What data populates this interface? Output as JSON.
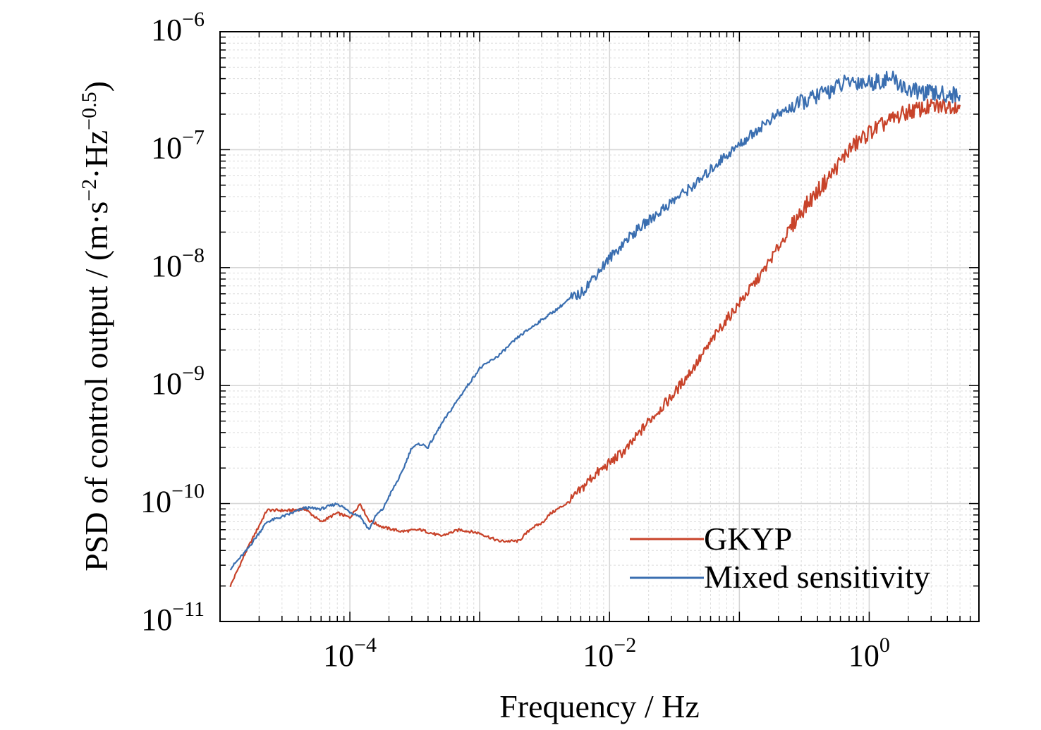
{
  "chart_data": {
    "type": "line",
    "title": "",
    "xlabel": "Frequency / Hz",
    "ylabel_prefix": "PSD of control output / (m·s",
    "ylabel_exp1": "−2",
    "ylabel_mid": "·Hz",
    "ylabel_exp2": "−0.5",
    "ylabel_suffix": ")",
    "xscale": "log",
    "yscale": "log",
    "xlim": [
      1e-05,
      7
    ],
    "ylim": [
      1e-11,
      1e-06
    ],
    "grid": true,
    "legend_position": "bottom-right",
    "x_ticks": [
      {
        "base": "10",
        "exp": "−4",
        "value": 0.0001
      },
      {
        "base": "10",
        "exp": "−2",
        "value": 0.01
      },
      {
        "base": "10",
        "exp": "0",
        "value": 1
      }
    ],
    "y_ticks": [
      {
        "base": "10",
        "exp": "−6",
        "value": 1e-06
      },
      {
        "base": "10",
        "exp": "−7",
        "value": 1e-07
      },
      {
        "base": "10",
        "exp": "−8",
        "value": 1e-08
      },
      {
        "base": "10",
        "exp": "−9",
        "value": 1e-09
      },
      {
        "base": "10",
        "exp": "−10",
        "value": 1e-10
      },
      {
        "base": "10",
        "exp": "−11",
        "value": 1e-11
      }
    ],
    "series": [
      {
        "name": "GKYP",
        "color": "#c8432a",
        "x": [
          1.2e-05,
          1.6e-05,
          2.3e-05,
          3.3e-05,
          4.5e-05,
          6e-05,
          8e-05,
          0.0001,
          0.00012,
          0.00014,
          0.00018,
          0.00025,
          0.00035,
          0.0005,
          0.0007,
          0.001,
          0.0014,
          0.002,
          0.0025,
          0.003,
          0.0035,
          0.004,
          0.005,
          0.006,
          0.007,
          0.01,
          0.014,
          0.02,
          0.03,
          0.05,
          0.07,
          0.1,
          0.15,
          0.2,
          0.3,
          0.5,
          0.7,
          1.0,
          1.5,
          2,
          3,
          5
        ],
        "y": [
          2e-11,
          4e-11,
          8.8e-11,
          8.7e-11,
          9e-11,
          7e-11,
          8.3e-11,
          7.6e-11,
          1e-10,
          7.2e-11,
          6.3e-11,
          5.8e-11,
          6e-11,
          5.3e-11,
          6e-11,
          5.6e-11,
          4.8e-11,
          4.8e-11,
          6.2e-11,
          6.8e-11,
          8.2e-11,
          9e-11,
          1.05e-10,
          1.3e-10,
          1.6e-10,
          2.2e-10,
          3e-10,
          5e-10,
          8e-10,
          1.7e-09,
          3e-09,
          5e-09,
          9e-09,
          1.5e-08,
          3e-08,
          6e-08,
          1e-07,
          1.4e-07,
          1.8e-07,
          2.1e-07,
          2.3e-07,
          2.4e-07
        ]
      },
      {
        "name": "Mixed sensitivity",
        "color": "#3a6eb0",
        "x": [
          1.2e-05,
          1.6e-05,
          2.3e-05,
          3.3e-05,
          4.5e-05,
          6e-05,
          8e-05,
          0.0001,
          0.00012,
          0.00014,
          0.00016,
          0.00018,
          0.0002,
          0.00025,
          0.0003,
          0.00035,
          0.0004,
          0.0005,
          0.0007,
          0.001,
          0.0014,
          0.002,
          0.003,
          0.004,
          0.005,
          0.006,
          0.007,
          0.01,
          0.014,
          0.02,
          0.03,
          0.05,
          0.07,
          0.1,
          0.15,
          0.2,
          0.3,
          0.5,
          0.7,
          1.0,
          1.5,
          2,
          3,
          5
        ],
        "y": [
          2.8e-11,
          4e-11,
          7e-11,
          8e-11,
          9.2e-11,
          9e-11,
          1e-10,
          8.5e-11,
          7.8e-11,
          6e-11,
          8e-11,
          9e-11,
          1.15e-10,
          1.8e-10,
          3e-10,
          3.2e-10,
          3e-10,
          4.6e-10,
          8e-10,
          1.4e-09,
          1.8e-09,
          2.6e-09,
          3.6e-09,
          4.5e-09,
          5.5e-09,
          6e-09,
          7.5e-09,
          1.2e-08,
          1.8e-08,
          2.5e-08,
          3.6e-08,
          5.5e-08,
          8e-08,
          1.1e-07,
          1.6e-07,
          2e-07,
          2.5e-07,
          3.2e-07,
          3.8e-07,
          3.7e-07,
          4e-07,
          3.2e-07,
          3e-07,
          2.9e-07
        ]
      }
    ]
  }
}
